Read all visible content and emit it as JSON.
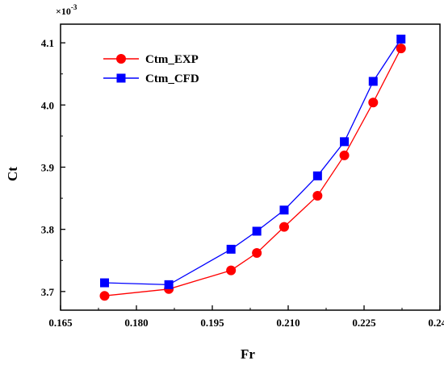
{
  "chart_data": {
    "type": "line",
    "xlabel": "Fr",
    "ylabel": "Ct",
    "y_multiplier": "×10",
    "y_multiplier_exponent": "-3",
    "xlim": [
      0.165,
      0.24
    ],
    "ylim": [
      3.67,
      4.13
    ],
    "x_ticks": [
      0.165,
      0.18,
      0.195,
      0.21,
      0.225,
      0.24
    ],
    "x_tick_labels": [
      "0.165",
      "0.180",
      "0.195",
      "0.210",
      "0.225",
      "0.240"
    ],
    "y_ticks": [
      3.7,
      3.8,
      3.9,
      4.0,
      4.1
    ],
    "y_tick_labels": [
      "3.7",
      "3.8",
      "3.9",
      "4.0",
      "4.1"
    ],
    "grid": false,
    "legend_position": "top-left",
    "series": [
      {
        "name": "Ctm_EXP",
        "color": "#ff0000",
        "marker": "circle",
        "x": [
          0.1737,
          0.1864,
          0.1987,
          0.2038,
          0.2092,
          0.2158,
          0.2211,
          0.2268,
          0.2323
        ],
        "y": [
          3.693,
          3.704,
          3.734,
          3.762,
          3.804,
          3.854,
          3.919,
          4.004,
          4.091
        ]
      },
      {
        "name": "Ctm_CFD",
        "color": "#0000ff",
        "marker": "square",
        "x": [
          0.1737,
          0.1864,
          0.1987,
          0.2038,
          0.2092,
          0.2158,
          0.2211,
          0.2268,
          0.2323
        ],
        "y": [
          3.714,
          3.711,
          3.768,
          3.797,
          3.831,
          3.886,
          3.941,
          4.038,
          4.106
        ]
      }
    ]
  }
}
